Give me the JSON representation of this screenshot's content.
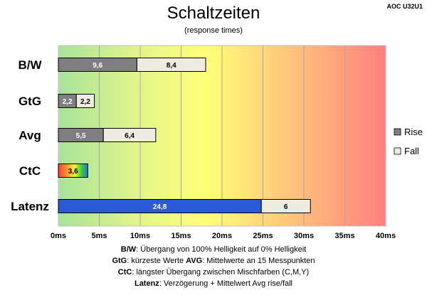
{
  "chart_data": {
    "type": "bar",
    "orientation": "horizontal",
    "stacked": true,
    "title": "Schaltzeiten",
    "subtitle": "(response times)",
    "model": "AOC U32U1",
    "categories": [
      "B/W",
      "GtG",
      "Avg",
      "CtC",
      "Latenz"
    ],
    "series": [
      {
        "name": "Rise",
        "color": "#7f7f7f",
        "values": [
          9.6,
          2.2,
          5.5,
          null,
          null
        ],
        "labels": [
          "9,6",
          "2,2",
          "5,5",
          "",
          ""
        ]
      },
      {
        "name": "Fall",
        "color": "#eeece1",
        "values": [
          8.4,
          2.2,
          6.4,
          null,
          null
        ],
        "labels": [
          "8,4",
          "2,2",
          "6,4",
          "",
          ""
        ]
      }
    ],
    "special_bars": [
      {
        "category": "CtC",
        "value": 3.6,
        "label": "3,6",
        "fill": "rainbow"
      },
      {
        "category": "Latenz",
        "segments": [
          {
            "value": 24.8,
            "label": "24,8",
            "color": "#2a5bd7"
          },
          {
            "value": 6,
            "label": "6",
            "color": "#eeece1"
          }
        ]
      }
    ],
    "xlim": [
      0,
      40
    ],
    "xticks": [
      0,
      5,
      10,
      15,
      20,
      25,
      30,
      35,
      40
    ],
    "xtick_labels": [
      "0ms",
      "5ms",
      "10ms",
      "15ms",
      "20ms",
      "25ms",
      "30ms",
      "35ms",
      "40ms"
    ],
    "background": "gradient green-yellow-orange-red",
    "grid": true,
    "legend_position": "right"
  },
  "footnotes": [
    [
      {
        "t": "B/W",
        "b": true
      },
      {
        "t": ":  Übergang von 100% Helligkeit auf 0% Helligkeit",
        "b": false
      }
    ],
    [
      {
        "t": "GtG",
        "b": true
      },
      {
        "t": ": kürzeste  Werte        ",
        "b": false
      },
      {
        "t": "AVG",
        "b": true
      },
      {
        "t": ": Mittelwerte  an 15 Messpunkten",
        "b": false
      }
    ],
    [
      {
        "t": "CtC",
        "b": true
      },
      {
        "t": ": längster Übergang  zwischen Mischfarben  (C,M,Y)",
        "b": false
      }
    ],
    [
      {
        "t": "Latenz",
        "b": true
      },
      {
        "t": ": Verzögerung  + Mittelwert Avg rise/fall",
        "b": false
      }
    ]
  ]
}
